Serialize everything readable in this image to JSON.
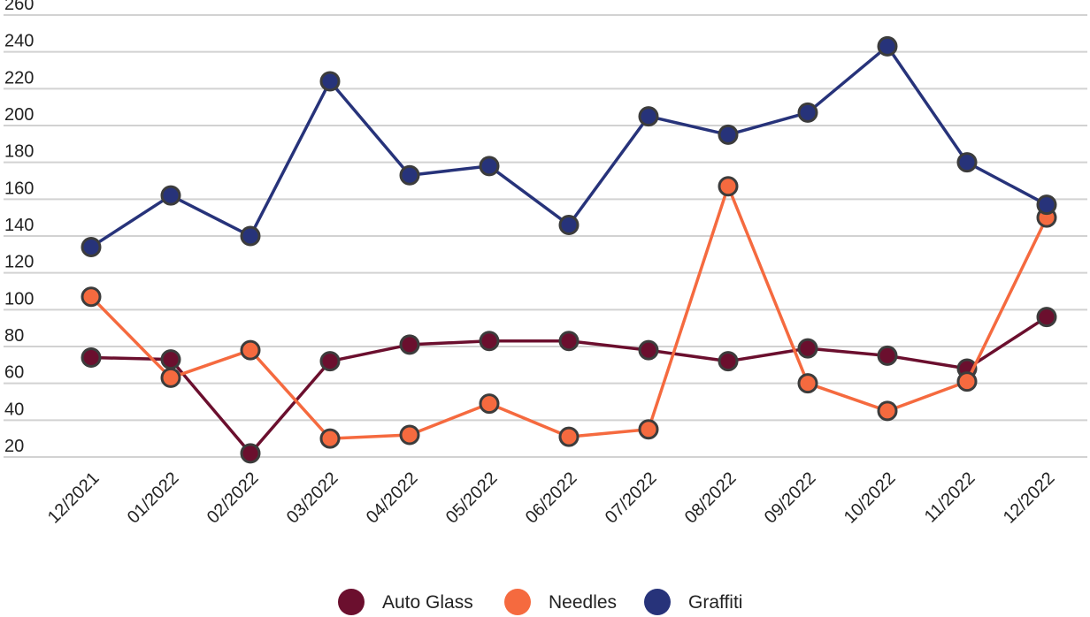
{
  "chart_data": {
    "type": "line",
    "categories": [
      "12/2021",
      "01/2022",
      "02/2022",
      "03/2022",
      "04/2022",
      "05/2022",
      "06/2022",
      "07/2022",
      "08/2022",
      "09/2022",
      "10/2022",
      "11/2022",
      "12/2022"
    ],
    "ylim": [
      20,
      260
    ],
    "yticks": [
      20,
      40,
      60,
      80,
      100,
      120,
      140,
      160,
      180,
      200,
      220,
      240,
      260
    ],
    "grid": true,
    "legend": "bottom-center",
    "series": [
      {
        "name": "Auto Glass",
        "color": "#6b0f2e",
        "values": [
          74,
          73,
          22,
          72,
          81,
          83,
          83,
          78,
          72,
          79,
          75,
          68,
          96
        ]
      },
      {
        "name": "Needles",
        "color": "#f56a3f",
        "values": [
          107,
          63,
          78,
          30,
          32,
          49,
          31,
          35,
          167,
          60,
          45,
          61,
          150
        ]
      },
      {
        "name": "Graffiti",
        "color": "#27337a",
        "values": [
          134,
          162,
          140,
          224,
          173,
          178,
          146,
          205,
          195,
          207,
          243,
          180,
          157
        ]
      }
    ]
  }
}
